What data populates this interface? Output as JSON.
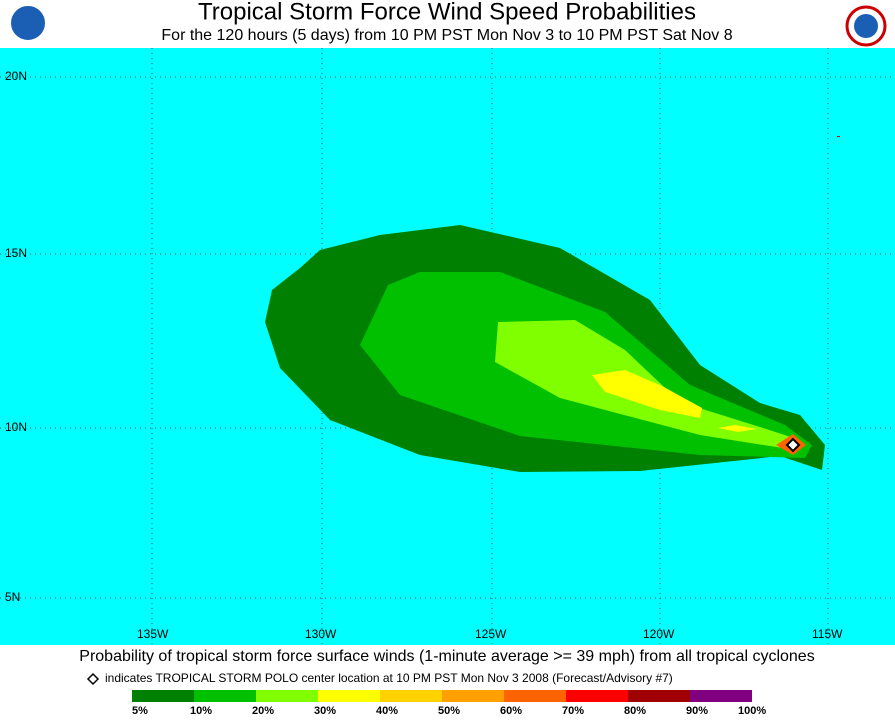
{
  "header": {
    "title": "Tropical Storm Force Wind Speed Probabilities",
    "subtitle": "For the 120 hours (5 days) from 10 PM PST Mon Nov 3 to 10 PM PST Sat Nov 8"
  },
  "map": {
    "lat_labels": [
      "20N",
      "15N",
      "10N",
      "5N"
    ],
    "lon_labels": [
      "135W",
      "130W",
      "125W",
      "120W",
      "115W"
    ]
  },
  "caption": "Probability of tropical storm force surface winds (1-minute average >= 39 mph) from all tropical cyclones",
  "legend": {
    "note": "indicates TROPICAL STORM POLO center location at 10 PM PST Mon Nov 3 2008 (Forecast/Advisory #7)",
    "labels": [
      "5%",
      "10%",
      "20%",
      "30%",
      "40%",
      "50%",
      "60%",
      "70%",
      "80%",
      "90%",
      "100%"
    ],
    "colors": [
      "#008000",
      "#00c000",
      "#7fff00",
      "#ffff00",
      "#ffd200",
      "#ffa000",
      "#ff6400",
      "#ff0000",
      "#a00000",
      "#800080"
    ]
  }
}
